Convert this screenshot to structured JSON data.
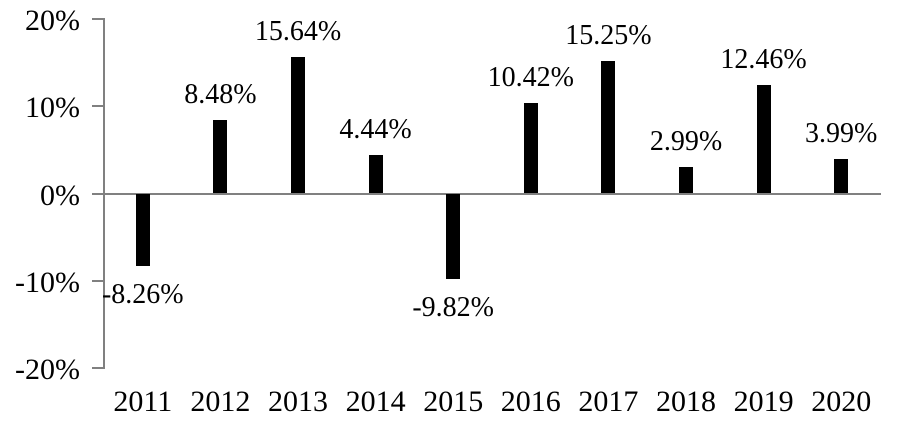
{
  "chart_data": {
    "type": "bar",
    "title": "",
    "xlabel": "",
    "ylabel": "",
    "categories": [
      "2011",
      "2012",
      "2013",
      "2014",
      "2015",
      "2016",
      "2017",
      "2018",
      "2019",
      "2020"
    ],
    "values": [
      -8.26,
      8.48,
      15.64,
      4.44,
      -9.82,
      10.42,
      15.25,
      2.99,
      12.46,
      3.99
    ],
    "value_labels": [
      "-8.26%",
      "8.48%",
      "15.64%",
      "4.44%",
      "-9.82%",
      "10.42%",
      "15.25%",
      "2.99%",
      "12.46%",
      "3.99%"
    ],
    "y_ticks": [
      {
        "value": 20,
        "label": "20%"
      },
      {
        "value": 10,
        "label": "10%"
      },
      {
        "value": 0,
        "label": "0%"
      },
      {
        "value": -10,
        "label": "-10%"
      },
      {
        "value": -20,
        "label": "-20%"
      }
    ],
    "ylim": [
      -20,
      20
    ],
    "legend": null,
    "grid": false,
    "bar_color": "#000000",
    "axis_color": "#808080",
    "label_color": "#000000"
  }
}
